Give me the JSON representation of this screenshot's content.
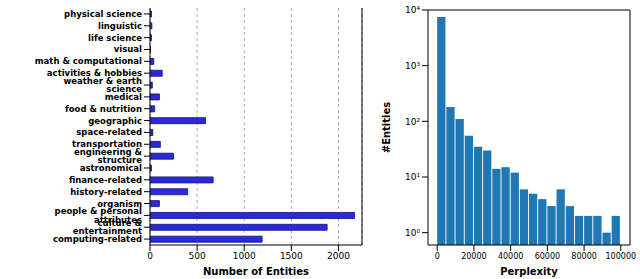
{
  "chart_data": [
    {
      "type": "bar",
      "orientation": "horizontal",
      "categories": [
        "physical science",
        "linguistic",
        "life science",
        "visual",
        "math & computational",
        "activities & hobbies",
        "weather & earth science",
        "medical",
        "food & nutrition",
        "geographic",
        "space-related",
        "transportation",
        "engineering & structure",
        "astronomical",
        "finance-related",
        "history-related",
        "organism",
        "people & personal attributes",
        "culture & entertainment",
        "computing-related"
      ],
      "values": [
        15,
        20,
        15,
        5,
        40,
        130,
        25,
        100,
        50,
        590,
        30,
        110,
        250,
        15,
        670,
        400,
        100,
        2170,
        1880,
        1190
      ],
      "color": "#2a2ad8",
      "xlabel": "Number of Entities",
      "xlim": [
        0,
        2250
      ],
      "xticks": [
        0,
        500,
        1000,
        1500,
        2000
      ],
      "grid": true
    },
    {
      "type": "histogram",
      "bins": [
        0,
        5000,
        10000,
        15000,
        20000,
        25000,
        30000,
        35000,
        40000,
        45000,
        50000,
        55000,
        60000,
        65000,
        70000,
        75000,
        80000,
        85000,
        90000,
        95000,
        100000
      ],
      "values": [
        7500,
        180,
        110,
        55,
        35,
        30,
        14,
        15,
        12,
        6,
        5,
        4,
        3,
        6,
        3,
        2,
        2,
        2,
        1,
        2
      ],
      "color": "#1f77b4",
      "xlabel": "Perplexity",
      "ylabel": "#Entities",
      "xlim": [
        -5000,
        105000
      ],
      "xticks": [
        0,
        20000,
        40000,
        60000,
        80000,
        100000
      ],
      "ylim": [
        0.6,
        10000
      ],
      "yticks": [
        {
          "value": 1,
          "label": "10⁰"
        },
        {
          "value": 10,
          "label": "10¹"
        },
        {
          "value": 100,
          "label": "10²"
        },
        {
          "value": 1000,
          "label": "10³"
        },
        {
          "value": 10000,
          "label": "10⁴"
        }
      ],
      "log": "y",
      "grid": false
    }
  ]
}
